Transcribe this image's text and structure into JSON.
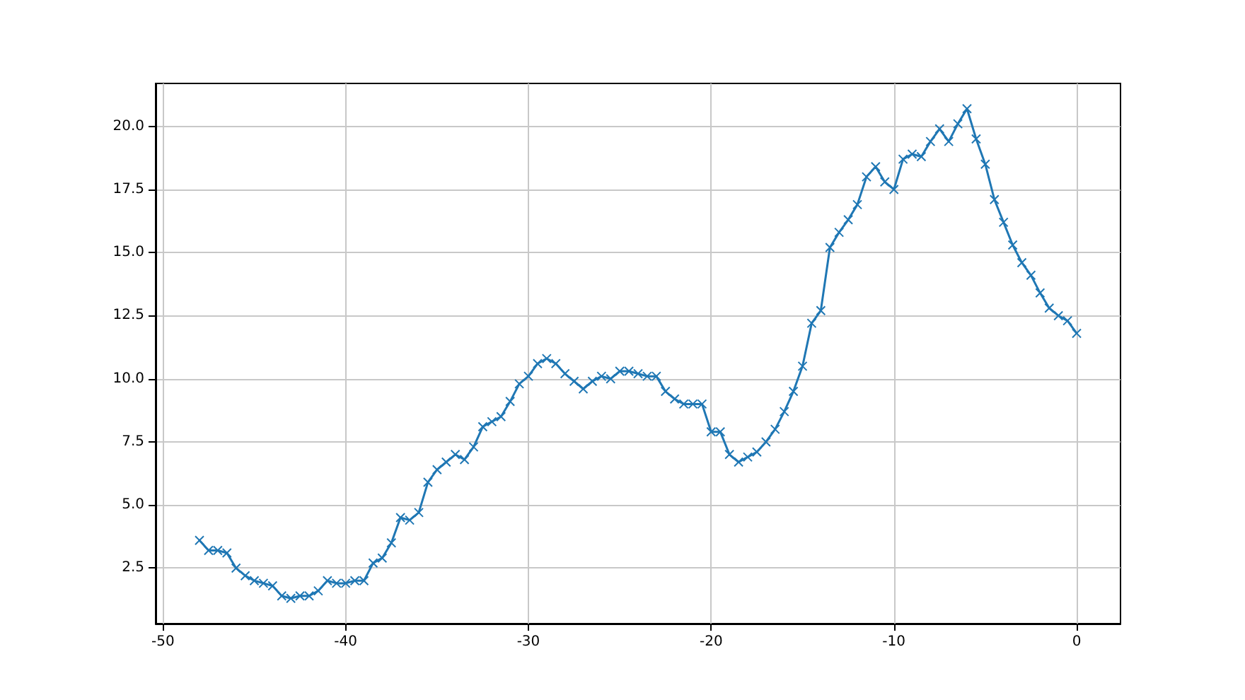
{
  "chart_data": {
    "type": "line",
    "x": [
      -48,
      -47.5,
      -47,
      -46.5,
      -46,
      -45.5,
      -45,
      -44.5,
      -44,
      -43.5,
      -43,
      -42.5,
      -42,
      -41.5,
      -41,
      -40.5,
      -40,
      -39.5,
      -39,
      -38.5,
      -38,
      -37.5,
      -37,
      -36.5,
      -36,
      -35.5,
      -35,
      -34.5,
      -34,
      -33.5,
      -33,
      -32.5,
      -32,
      -31.5,
      -31,
      -30.5,
      -30,
      -29.5,
      -29,
      -28.5,
      -28,
      -27.5,
      -27,
      -26.5,
      -26,
      -25.5,
      -25,
      -24.5,
      -24,
      -23.5,
      -23,
      -22.5,
      -22,
      -21.5,
      -21,
      -20.5,
      -20,
      -19.5,
      -19,
      -18.5,
      -18,
      -17.5,
      -17,
      -16.5,
      -16,
      -15.5,
      -15,
      -14.5,
      -14,
      -13.5,
      -13,
      -12.5,
      -12,
      -11.5,
      -11,
      -10.5,
      -10,
      -9.5,
      -9,
      -8.5,
      -8,
      -7.5,
      -7,
      -6.5,
      -6,
      -5.5,
      -5,
      -4.5,
      -4,
      -3.5,
      -3,
      -2.5,
      -2,
      -1.5,
      -1,
      -0.5,
      0
    ],
    "series": [
      {
        "color": "#1f77b4",
        "values": [
          3.6,
          3.2,
          3.2,
          3.1,
          2.5,
          2.2,
          2.0,
          1.9,
          1.8,
          1.4,
          1.3,
          1.4,
          1.4,
          1.6,
          2.0,
          1.9,
          1.9,
          2.0,
          2.0,
          2.7,
          2.9,
          3.5,
          4.5,
          4.4,
          4.7,
          5.9,
          6.4,
          6.7,
          7.0,
          6.8,
          7.3,
          8.1,
          8.3,
          8.5,
          9.1,
          9.8,
          10.1,
          10.6,
          10.8,
          10.6,
          10.2,
          9.9,
          9.6,
          9.9,
          10.1,
          10.0,
          10.3,
          10.3,
          10.2,
          10.1,
          10.1,
          9.5,
          9.2,
          9.0,
          9.0,
          9.0,
          7.9,
          7.9,
          7.0,
          6.7,
          6.9,
          7.1,
          7.5,
          8.0,
          8.7,
          9.5,
          10.5,
          12.2,
          12.7,
          15.2,
          15.8,
          16.3,
          16.9,
          18.0,
          18.4,
          17.8,
          17.5,
          18.7,
          18.9,
          18.8,
          19.4,
          19.9,
          19.4,
          20.1,
          20.7,
          19.5,
          18.5,
          17.1,
          16.2,
          15.3,
          14.6,
          14.1,
          13.4,
          12.8,
          12.5,
          12.3,
          11.8
        ]
      }
    ],
    "xlim": [
      -50.4,
      2.4
    ],
    "xticks": [
      -50,
      -40,
      -30,
      -20,
      -10,
      0
    ],
    "ylim": [
      0.3,
      21.7
    ],
    "yticks": [
      {
        "value": 2.5,
        "label": "2.5"
      },
      {
        "value": 5,
        "label": "5.0"
      },
      {
        "value": 7.5,
        "label": "7.5"
      },
      {
        "value": 10,
        "label": "10.0"
      },
      {
        "value": 12.5,
        "label": "12.5"
      },
      {
        "value": 15,
        "label": "15.0"
      },
      {
        "value": 17.5,
        "label": "17.5"
      },
      {
        "value": 20,
        "label": "20.0"
      }
    ],
    "grid": true,
    "marker": "cross",
    "line_style": "solid"
  }
}
